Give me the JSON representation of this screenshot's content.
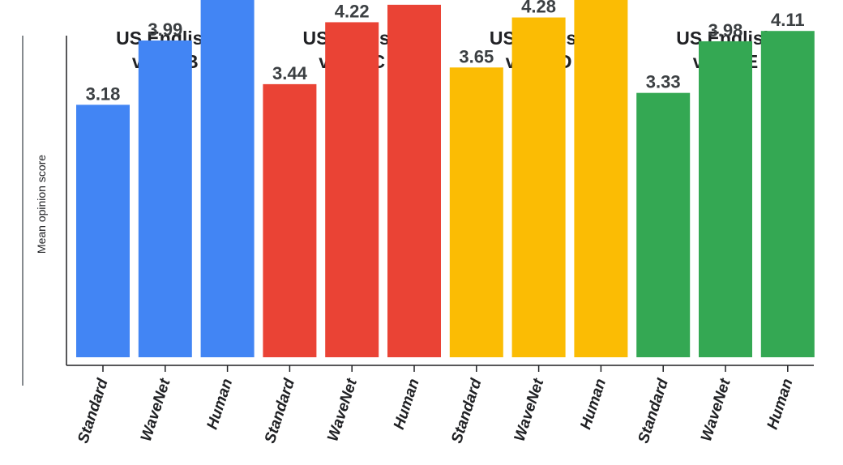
{
  "chart_data": {
    "type": "bar",
    "title": "",
    "ylabel": "Mean opinion score",
    "xlabel": "",
    "ylim": [
      0,
      5
    ],
    "grid": false,
    "groups": [
      {
        "label_line1": "US English",
        "label_line2": "voice B",
        "color": "#4285F4",
        "bars": [
          {
            "category": "Standard",
            "value": 3.18
          },
          {
            "category": "WaveNet",
            "value": 3.99
          },
          {
            "category": "Human",
            "value": 4.52
          }
        ]
      },
      {
        "label_line1": "US English",
        "label_line2": "voice C",
        "color": "#EA4335",
        "bars": [
          {
            "category": "Standard",
            "value": 3.44
          },
          {
            "category": "WaveNet",
            "value": 4.22
          },
          {
            "category": "Human",
            "value": 4.44
          }
        ]
      },
      {
        "label_line1": "US English",
        "label_line2": "voice D",
        "color": "#FBBC04",
        "bars": [
          {
            "category": "Standard",
            "value": 3.65
          },
          {
            "category": "WaveNet",
            "value": 4.28
          },
          {
            "category": "Human",
            "value": 4.59
          }
        ]
      },
      {
        "label_line1": "US English",
        "label_line2": "voice E",
        "color": "#34A853",
        "bars": [
          {
            "category": "Standard",
            "value": 3.33
          },
          {
            "category": "WaveNet",
            "value": 3.98
          },
          {
            "category": "Human",
            "value": 4.11
          }
        ]
      }
    ]
  }
}
